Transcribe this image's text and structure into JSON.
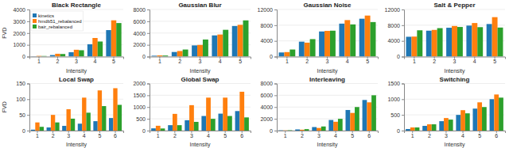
{
  "chart_data": [
    {
      "type": "bar",
      "title": "Black Rectangle",
      "xlabel": "Intensity",
      "ylabel": "FVD",
      "categories": [
        "1",
        "2",
        "3",
        "4",
        "5"
      ],
      "series": [
        {
          "name": "kinetics",
          "values": [
            30,
            130,
            370,
            1050,
            2250
          ]
        },
        {
          "name": "hmdb51_rebalanced",
          "values": [
            60,
            240,
            580,
            1580,
            3080
          ]
        },
        {
          "name": "bair_rebalanced",
          "values": [
            50,
            220,
            540,
            1280,
            2850
          ]
        }
      ],
      "ylim": [
        0,
        4000
      ],
      "yticks": [
        0,
        1000,
        2000,
        3000,
        4000
      ],
      "grid": true,
      "legend": "upper left"
    },
    {
      "type": "bar",
      "title": "Gaussian Blur",
      "xlabel": "Intensity",
      "categories": [
        "1",
        "2",
        "3",
        "4",
        "5"
      ],
      "series": [
        {
          "name": "kinetics",
          "values": [
            150,
            780,
            1900,
            3600,
            5200
          ]
        },
        {
          "name": "hmdb51_rebalanced",
          "values": [
            200,
            950,
            1980,
            3750,
            5400
          ]
        },
        {
          "name": "bair_rebalanced",
          "values": [
            180,
            1200,
            2900,
            4550,
            6150
          ]
        }
      ],
      "ylim": [
        0,
        8000
      ],
      "yticks": [
        0,
        2000,
        4000,
        6000,
        8000
      ],
      "grid": true
    },
    {
      "type": "bar",
      "title": "Gaussian Noise",
      "xlabel": "Intensity",
      "categories": [
        "1",
        "2",
        "3",
        "4",
        "5"
      ],
      "series": [
        {
          "name": "kinetics",
          "values": [
            1050,
            3800,
            6400,
            8400,
            9650
          ]
        },
        {
          "name": "hmdb51_rebalanced",
          "values": [
            1150,
            3550,
            6550,
            9300,
            10450
          ]
        },
        {
          "name": "bair_rebalanced",
          "values": [
            1800,
            4450,
            6600,
            8200,
            8800
          ]
        }
      ],
      "ylim": [
        0,
        12000
      ],
      "yticks": [
        0,
        4000,
        8000,
        12000
      ],
      "grid": true
    },
    {
      "type": "bar",
      "title": "Salt & Pepper",
      "xlabel": "Intensity",
      "categories": [
        "1",
        "2",
        "3",
        "4",
        "5"
      ],
      "series": [
        {
          "name": "kinetics",
          "values": [
            5050,
            6600,
            7350,
            7900,
            8300
          ]
        },
        {
          "name": "hmdb51_rebalanced",
          "values": [
            5100,
            6800,
            7800,
            8550,
            10050
          ]
        },
        {
          "name": "bair_rebalanced",
          "values": [
            6700,
            7250,
            7550,
            7500,
            7400
          ]
        }
      ],
      "ylim": [
        0,
        12000
      ],
      "yticks": [
        0,
        4000,
        8000,
        12000
      ],
      "grid": true
    },
    {
      "type": "bar",
      "title": "Local Swap",
      "xlabel": "Intensity",
      "ylabel": "FVD",
      "categories": [
        "1",
        "2",
        "3",
        "4",
        "5",
        "6"
      ],
      "series": [
        {
          "name": "kinetics",
          "values": [
            3,
            10,
            15,
            22,
            30,
            40
          ]
        },
        {
          "name": "hmdb51_rebalanced",
          "values": [
            26,
            50,
            68,
            105,
            128,
            135
          ]
        },
        {
          "name": "bair_rebalanced",
          "values": [
            12,
            26,
            38,
            57,
            78,
            82
          ]
        }
      ],
      "ylim": [
        0,
        150
      ],
      "yticks": [
        0,
        50,
        100,
        150
      ],
      "grid": true
    },
    {
      "type": "bar",
      "title": "Global Swap",
      "xlabel": "Intensity",
      "categories": [
        "1",
        "2",
        "3",
        "4",
        "5",
        "6"
      ],
      "series": [
        {
          "name": "kinetics",
          "values": [
            95,
            230,
            440,
            620,
            720,
            830
          ]
        },
        {
          "name": "hmdb51_rebalanced",
          "values": [
            205,
            710,
            1080,
            1400,
            1400,
            1650
          ]
        },
        {
          "name": "bair_rebalanced",
          "values": [
            90,
            230,
            370,
            500,
            620,
            560
          ]
        }
      ],
      "ylim": [
        0,
        2000
      ],
      "yticks": [
        0,
        500,
        1000,
        1500,
        2000
      ],
      "grid": true
    },
    {
      "type": "bar",
      "title": "Interleaving",
      "xlabel": "Intensity",
      "categories": [
        "1",
        "2",
        "3",
        "4",
        "5",
        "6"
      ],
      "series": [
        {
          "name": "kinetics",
          "values": [
            50,
            200,
            600,
            1800,
            3500,
            5200
          ]
        },
        {
          "name": "hmdb51_rebalanced",
          "values": [
            40,
            150,
            450,
            1500,
            3000,
            4800
          ]
        },
        {
          "name": "bair_rebalanced",
          "values": [
            60,
            250,
            700,
            2000,
            4000,
            6000
          ]
        }
      ],
      "ylim": [
        0,
        8000
      ],
      "yticks": [
        0,
        2000,
        4000,
        6000,
        8000
      ],
      "grid": true
    },
    {
      "type": "bar",
      "title": "Switching",
      "xlabel": "Intensity",
      "categories": [
        "1",
        "2",
        "3",
        "4",
        "5",
        "6"
      ],
      "series": [
        {
          "name": "kinetics",
          "values": [
            50,
            150,
            300,
            500,
            700,
            1000
          ]
        },
        {
          "name": "hmdb51_rebalanced",
          "values": [
            100,
            200,
            400,
            650,
            900,
            1150
          ]
        },
        {
          "name": "bair_rebalanced",
          "values": [
            100,
            200,
            350,
            550,
            750,
            1050
          ]
        }
      ],
      "ylim": [
        0,
        1500
      ],
      "yticks": [
        0,
        500,
        1000,
        1500
      ],
      "grid": true
    }
  ]
}
